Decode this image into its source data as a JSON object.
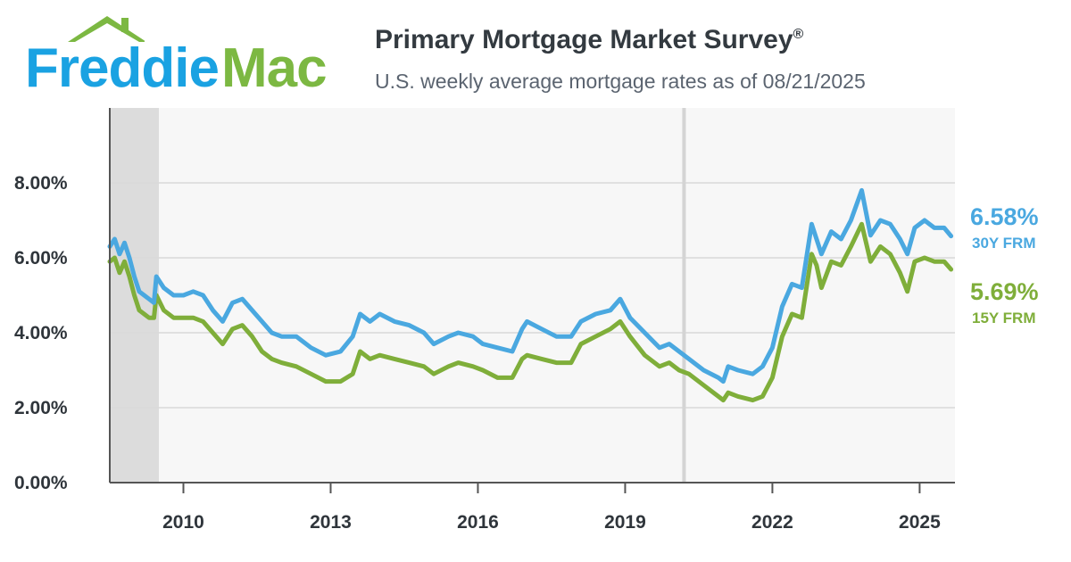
{
  "brand": {
    "logo_part1": "Freddie",
    "logo_part2": "Mac",
    "blue": "#1aa2e2",
    "green": "#7cb842"
  },
  "header": {
    "title": "Primary Mortgage Market Survey",
    "title_mark": "®",
    "subtitle": "U.S. weekly average mortgage rates as of 08/21/2025"
  },
  "chart_data": {
    "type": "line",
    "title": "Primary Mortgage Market Survey®",
    "subtitle": "U.S. weekly average mortgage rates as of 08/21/2025",
    "xlim": [
      2008.5,
      2025.72
    ],
    "ylim": [
      0,
      10
    ],
    "y_ticks": [
      0,
      2,
      4,
      6,
      8
    ],
    "y_tick_labels": [
      "0.00%",
      "2.00%",
      "4.00%",
      "6.00%",
      "8.00%"
    ],
    "x_ticks": [
      2010,
      2013,
      2016,
      2019,
      2022,
      2025
    ],
    "x_tick_labels": [
      "2010",
      "2013",
      "2016",
      "2019",
      "2022",
      "2025"
    ],
    "grid": true,
    "shaded_periods": [
      [
        2008.5,
        2009.5
      ]
    ],
    "reference_lines": [
      2020.2
    ],
    "series": [
      {
        "name": "30Y FRM",
        "end_value": "6.58%",
        "color": "#4aa8e0",
        "points": [
          [
            2008.5,
            6.3
          ],
          [
            2008.6,
            6.5
          ],
          [
            2008.7,
            6.1
          ],
          [
            2008.8,
            6.4
          ],
          [
            2008.9,
            6.0
          ],
          [
            2009.0,
            5.5
          ],
          [
            2009.1,
            5.1
          ],
          [
            2009.2,
            5.0
          ],
          [
            2009.3,
            4.9
          ],
          [
            2009.4,
            4.8
          ],
          [
            2009.45,
            5.5
          ],
          [
            2009.6,
            5.2
          ],
          [
            2009.8,
            5.0
          ],
          [
            2010.0,
            5.0
          ],
          [
            2010.2,
            5.1
          ],
          [
            2010.4,
            5.0
          ],
          [
            2010.6,
            4.6
          ],
          [
            2010.8,
            4.3
          ],
          [
            2011.0,
            4.8
          ],
          [
            2011.2,
            4.9
          ],
          [
            2011.4,
            4.6
          ],
          [
            2011.6,
            4.3
          ],
          [
            2011.8,
            4.0
          ],
          [
            2012.0,
            3.9
          ],
          [
            2012.3,
            3.9
          ],
          [
            2012.6,
            3.6
          ],
          [
            2012.9,
            3.4
          ],
          [
            2013.2,
            3.5
          ],
          [
            2013.45,
            3.9
          ],
          [
            2013.6,
            4.5
          ],
          [
            2013.8,
            4.3
          ],
          [
            2014.0,
            4.5
          ],
          [
            2014.3,
            4.3
          ],
          [
            2014.6,
            4.2
          ],
          [
            2014.9,
            4.0
          ],
          [
            2015.1,
            3.7
          ],
          [
            2015.4,
            3.9
          ],
          [
            2015.6,
            4.0
          ],
          [
            2015.9,
            3.9
          ],
          [
            2016.1,
            3.7
          ],
          [
            2016.4,
            3.6
          ],
          [
            2016.7,
            3.5
          ],
          [
            2016.9,
            4.1
          ],
          [
            2017.0,
            4.3
          ],
          [
            2017.3,
            4.1
          ],
          [
            2017.6,
            3.9
          ],
          [
            2017.9,
            3.9
          ],
          [
            2018.1,
            4.3
          ],
          [
            2018.4,
            4.5
          ],
          [
            2018.7,
            4.6
          ],
          [
            2018.9,
            4.9
          ],
          [
            2019.1,
            4.4
          ],
          [
            2019.4,
            4.0
          ],
          [
            2019.7,
            3.6
          ],
          [
            2019.9,
            3.7
          ],
          [
            2020.1,
            3.5
          ],
          [
            2020.3,
            3.3
          ],
          [
            2020.6,
            3.0
          ],
          [
            2020.9,
            2.8
          ],
          [
            2021.0,
            2.7
          ],
          [
            2021.1,
            3.1
          ],
          [
            2021.3,
            3.0
          ],
          [
            2021.6,
            2.9
          ],
          [
            2021.8,
            3.1
          ],
          [
            2022.0,
            3.6
          ],
          [
            2022.2,
            4.7
          ],
          [
            2022.4,
            5.3
          ],
          [
            2022.6,
            5.2
          ],
          [
            2022.8,
            6.9
          ],
          [
            2022.9,
            6.5
          ],
          [
            2023.0,
            6.1
          ],
          [
            2023.2,
            6.7
          ],
          [
            2023.4,
            6.5
          ],
          [
            2023.6,
            7.0
          ],
          [
            2023.82,
            7.8
          ],
          [
            2024.0,
            6.6
          ],
          [
            2024.2,
            7.0
          ],
          [
            2024.4,
            6.9
          ],
          [
            2024.6,
            6.5
          ],
          [
            2024.75,
            6.1
          ],
          [
            2024.9,
            6.8
          ],
          [
            2025.1,
            7.0
          ],
          [
            2025.3,
            6.8
          ],
          [
            2025.5,
            6.8
          ],
          [
            2025.64,
            6.58
          ]
        ]
      },
      {
        "name": "15Y FRM",
        "end_value": "5.69%",
        "color": "#7fae3a",
        "points": [
          [
            2008.5,
            5.9
          ],
          [
            2008.6,
            6.0
          ],
          [
            2008.7,
            5.6
          ],
          [
            2008.8,
            5.9
          ],
          [
            2008.9,
            5.5
          ],
          [
            2009.0,
            5.0
          ],
          [
            2009.1,
            4.6
          ],
          [
            2009.2,
            4.5
          ],
          [
            2009.3,
            4.4
          ],
          [
            2009.4,
            4.4
          ],
          [
            2009.45,
            5.0
          ],
          [
            2009.6,
            4.6
          ],
          [
            2009.8,
            4.4
          ],
          [
            2010.0,
            4.4
          ],
          [
            2010.2,
            4.4
          ],
          [
            2010.4,
            4.3
          ],
          [
            2010.6,
            4.0
          ],
          [
            2010.8,
            3.7
          ],
          [
            2011.0,
            4.1
          ],
          [
            2011.2,
            4.2
          ],
          [
            2011.4,
            3.9
          ],
          [
            2011.6,
            3.5
          ],
          [
            2011.8,
            3.3
          ],
          [
            2012.0,
            3.2
          ],
          [
            2012.3,
            3.1
          ],
          [
            2012.6,
            2.9
          ],
          [
            2012.9,
            2.7
          ],
          [
            2013.2,
            2.7
          ],
          [
            2013.45,
            2.9
          ],
          [
            2013.6,
            3.5
          ],
          [
            2013.8,
            3.3
          ],
          [
            2014.0,
            3.4
          ],
          [
            2014.3,
            3.3
          ],
          [
            2014.6,
            3.2
          ],
          [
            2014.9,
            3.1
          ],
          [
            2015.1,
            2.9
          ],
          [
            2015.4,
            3.1
          ],
          [
            2015.6,
            3.2
          ],
          [
            2015.9,
            3.1
          ],
          [
            2016.1,
            3.0
          ],
          [
            2016.4,
            2.8
          ],
          [
            2016.7,
            2.8
          ],
          [
            2016.9,
            3.3
          ],
          [
            2017.0,
            3.4
          ],
          [
            2017.3,
            3.3
          ],
          [
            2017.6,
            3.2
          ],
          [
            2017.9,
            3.2
          ],
          [
            2018.1,
            3.7
          ],
          [
            2018.4,
            3.9
          ],
          [
            2018.7,
            4.1
          ],
          [
            2018.9,
            4.3
          ],
          [
            2019.1,
            3.9
          ],
          [
            2019.4,
            3.4
          ],
          [
            2019.7,
            3.1
          ],
          [
            2019.9,
            3.2
          ],
          [
            2020.1,
            3.0
          ],
          [
            2020.3,
            2.9
          ],
          [
            2020.6,
            2.6
          ],
          [
            2020.9,
            2.3
          ],
          [
            2021.0,
            2.2
          ],
          [
            2021.1,
            2.4
          ],
          [
            2021.3,
            2.3
          ],
          [
            2021.6,
            2.2
          ],
          [
            2021.8,
            2.3
          ],
          [
            2022.0,
            2.8
          ],
          [
            2022.2,
            3.9
          ],
          [
            2022.4,
            4.5
          ],
          [
            2022.6,
            4.4
          ],
          [
            2022.8,
            6.1
          ],
          [
            2022.9,
            5.8
          ],
          [
            2023.0,
            5.2
          ],
          [
            2023.2,
            5.9
          ],
          [
            2023.4,
            5.8
          ],
          [
            2023.6,
            6.3
          ],
          [
            2023.82,
            6.9
          ],
          [
            2024.0,
            5.9
          ],
          [
            2024.2,
            6.3
          ],
          [
            2024.4,
            6.1
          ],
          [
            2024.6,
            5.6
          ],
          [
            2024.75,
            5.1
          ],
          [
            2024.9,
            5.9
          ],
          [
            2025.1,
            6.0
          ],
          [
            2025.3,
            5.9
          ],
          [
            2025.5,
            5.9
          ],
          [
            2025.64,
            5.69
          ]
        ]
      }
    ]
  }
}
